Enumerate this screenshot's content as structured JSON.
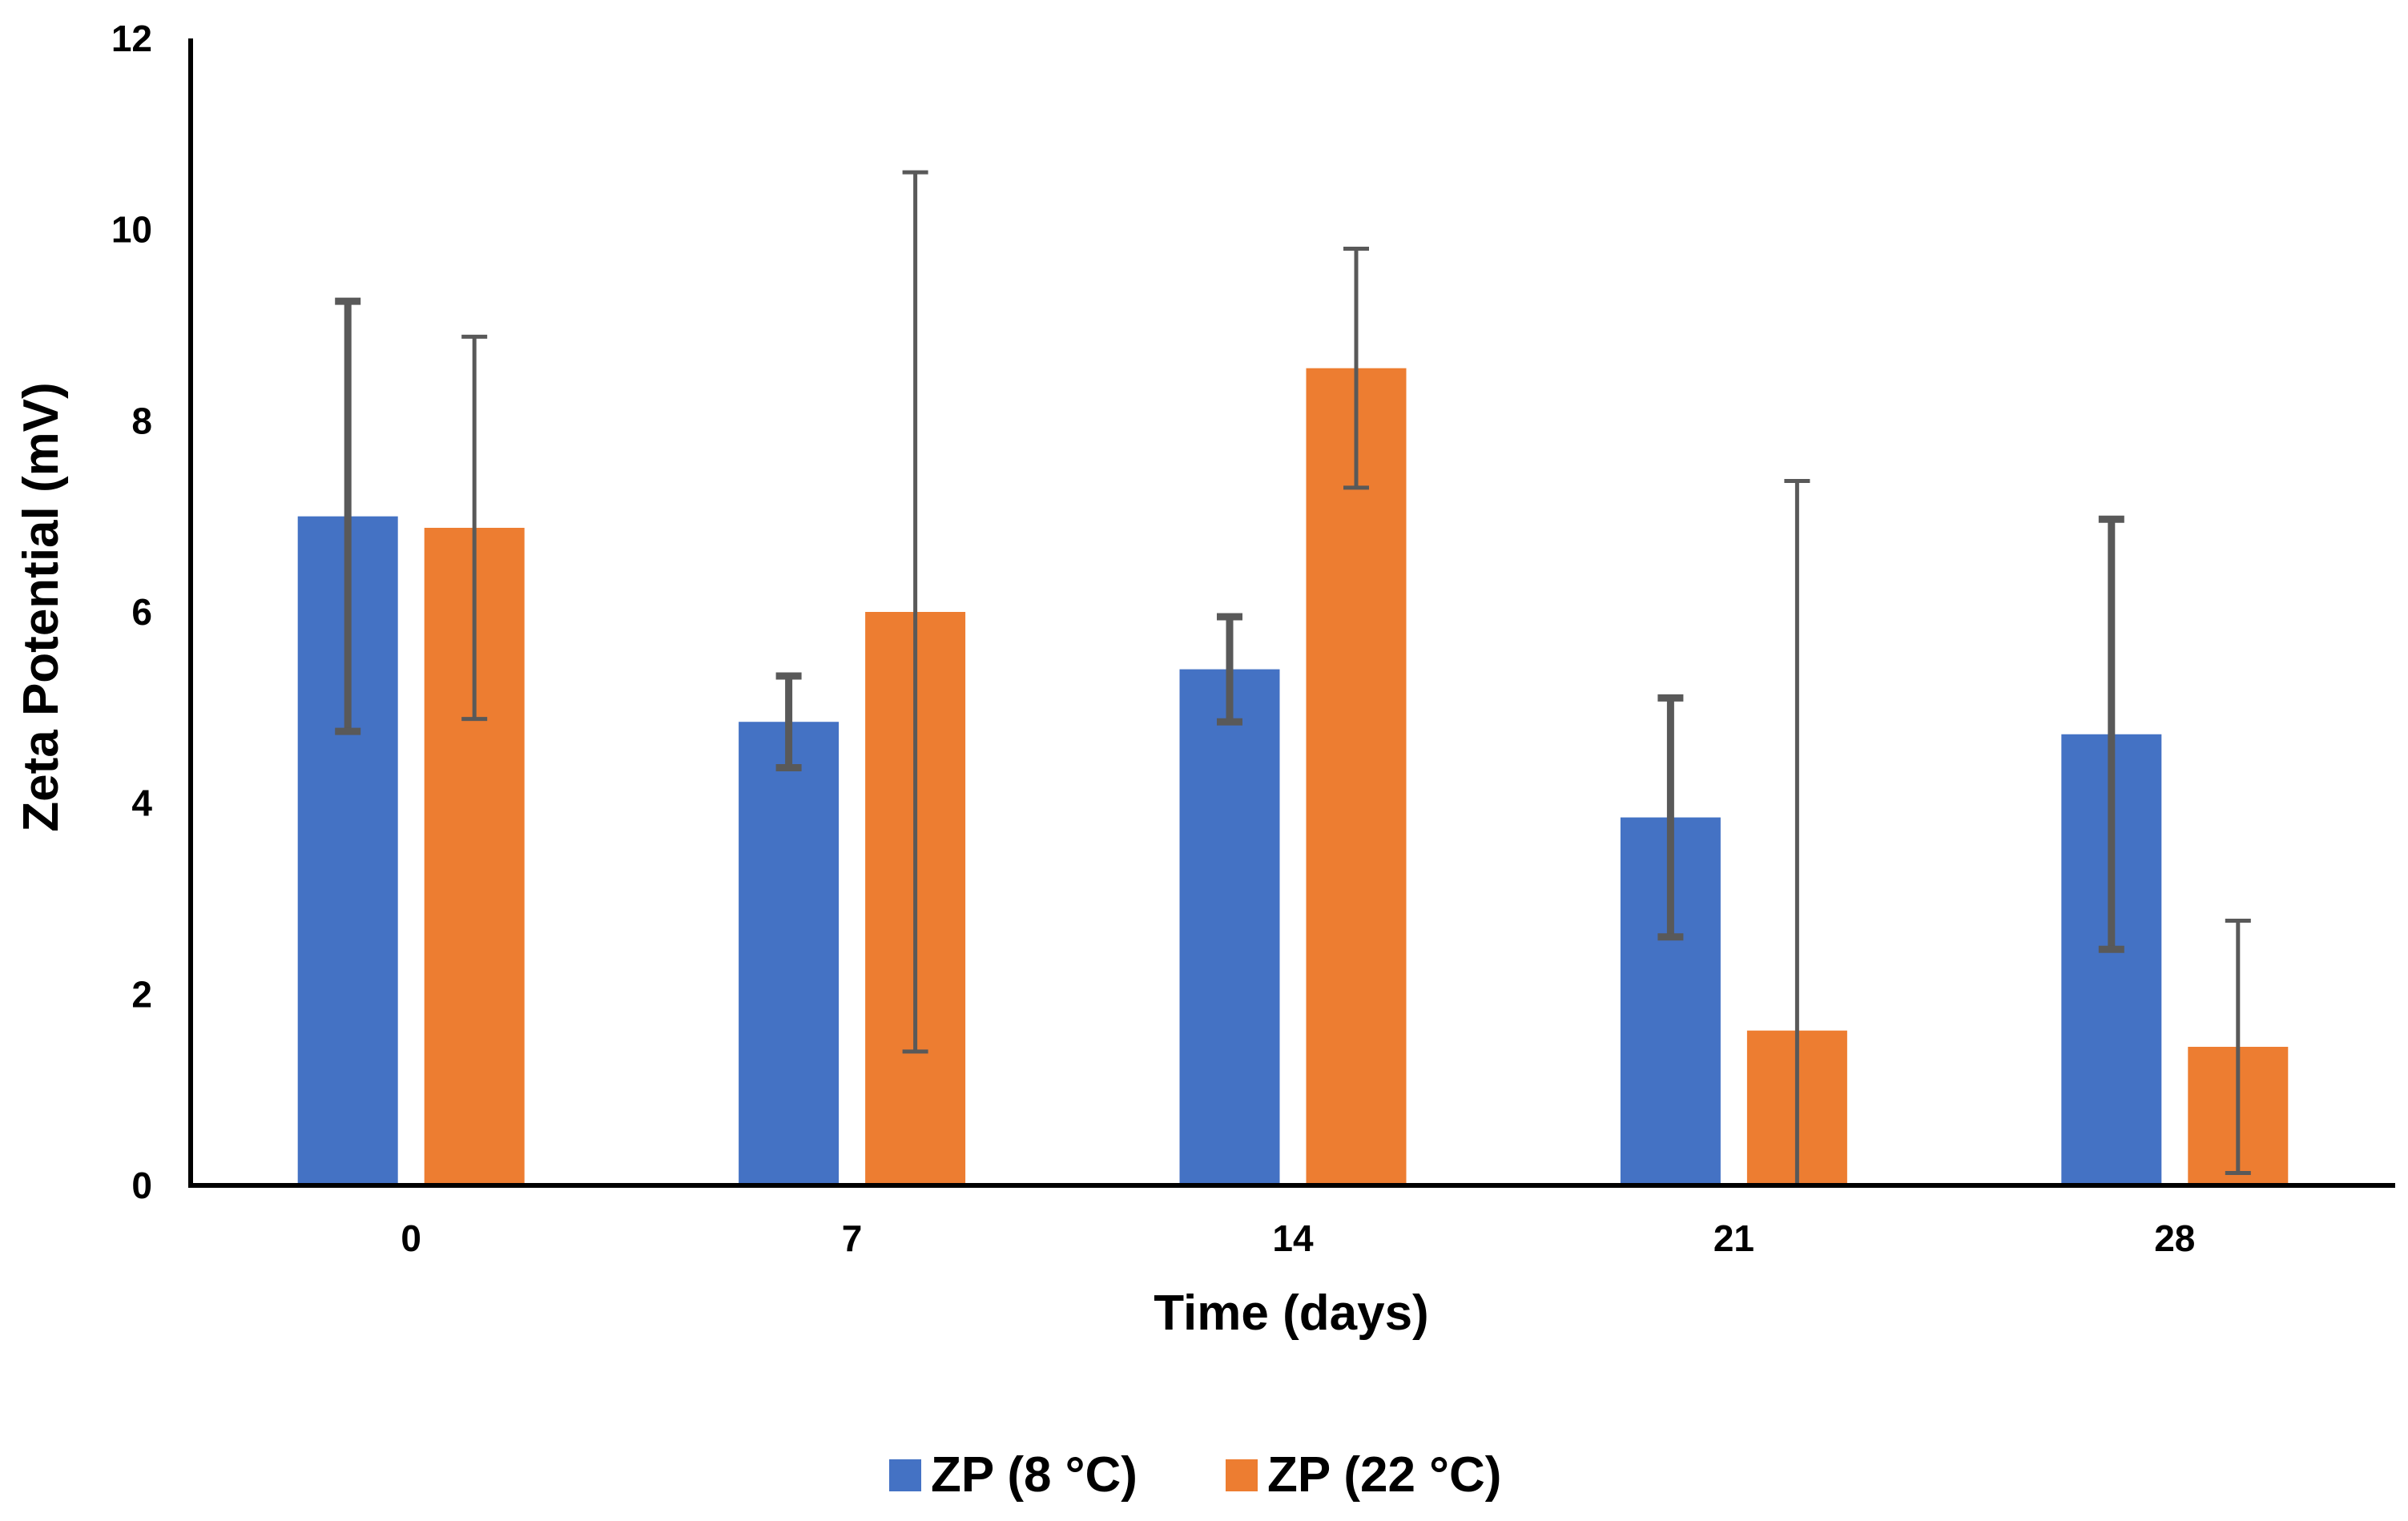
{
  "chart_data": {
    "type": "bar",
    "title": "",
    "xlabel": "Time (days)",
    "ylabel": "Zeta Potential (mV)",
    "categories": [
      "0",
      "7",
      "14",
      "21",
      "28"
    ],
    "ylim": [
      0,
      12
    ],
    "yticks": [
      0,
      2,
      4,
      6,
      8,
      10,
      12
    ],
    "grid": false,
    "legend_position": "bottom",
    "series": [
      {
        "name": "ZP (8 °C)",
        "color": "#4472C4",
        "values": [
          7.0,
          4.85,
          5.4,
          3.85,
          4.72
        ],
        "errors": [
          2.25,
          0.48,
          0.55,
          1.25,
          2.25
        ]
      },
      {
        "name": "ZP (22 °C)",
        "color": "#ED7D31",
        "values": [
          6.88,
          6.0,
          8.55,
          1.62,
          1.45
        ],
        "errors": [
          2.0,
          4.6,
          1.25,
          5.75,
          1.32
        ]
      }
    ],
    "error_bar_color": "#595959",
    "axis_color": "#000000"
  }
}
